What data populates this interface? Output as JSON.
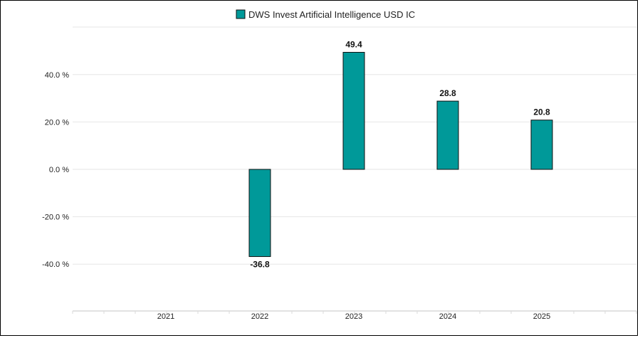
{
  "chart_data": {
    "type": "bar",
    "categories": [
      "2021",
      "2022",
      "2023",
      "2024",
      "2025"
    ],
    "series": [
      {
        "name": "DWS Invest Artificial Intelligence USD IC",
        "values": [
          null,
          -36.8,
          49.4,
          28.8,
          20.8
        ],
        "labels": [
          "",
          "-36.8",
          "49.4",
          "28.8",
          "20.8"
        ]
      }
    ],
    "yticks": [
      -40,
      -20,
      0,
      20,
      40
    ],
    "ytick_labels": [
      "-40.0 %",
      "-20.0 %",
      "0.0 %",
      "20.0 %",
      "40.0 %"
    ],
    "ylim": [
      -60,
      60
    ],
    "grid": true,
    "legend": "top-center",
    "colors": {
      "bar": "#009999",
      "bar_stroke": "#111111",
      "grid": "#e6e6e6",
      "axis": "#d9d9d9"
    }
  }
}
